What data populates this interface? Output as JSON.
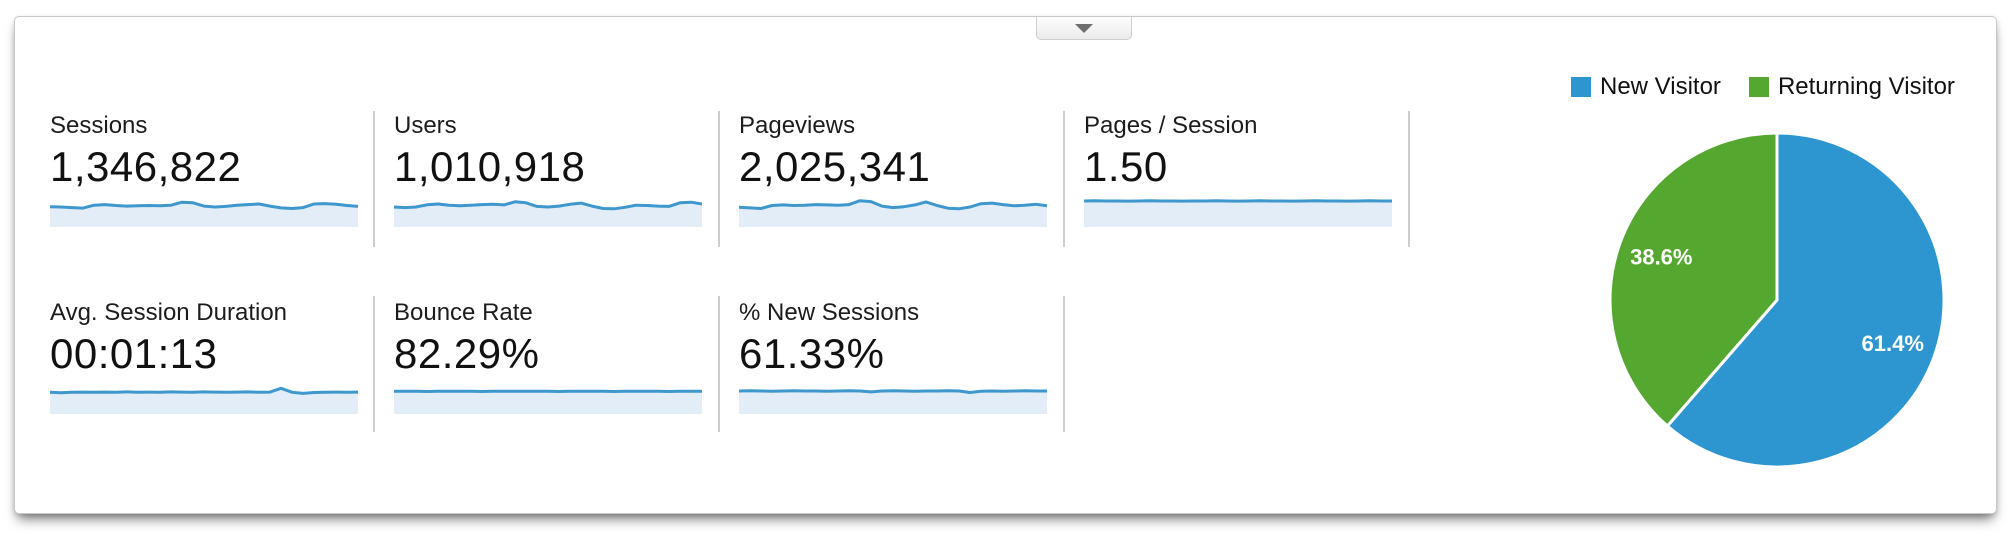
{
  "widget": {
    "collapse_button": {
      "icon": "caret-down"
    }
  },
  "metrics": {
    "items": [
      {
        "label": "Sessions",
        "value": "1,346,822"
      },
      {
        "label": "Users",
        "value": "1,010,918"
      },
      {
        "label": "Pageviews",
        "value": "2,025,341"
      },
      {
        "label": "Pages / Session",
        "value": "1.50"
      },
      {
        "label": "Avg. Session Duration",
        "value": "00:01:13"
      },
      {
        "label": "Bounce Rate",
        "value": "82.29%"
      },
      {
        "label": "% New Sessions",
        "value": "61.33%"
      }
    ]
  },
  "chart_data": [
    {
      "id": "visitor-split-pie",
      "type": "pie",
      "labels": [
        "New Visitor",
        "Returning Visitor"
      ],
      "values": [
        61.4,
        38.6
      ],
      "slice_labels": [
        "61.4%",
        "38.6%"
      ],
      "colors": [
        "#2D96D0",
        "#55A82F"
      ],
      "legend_position": "top",
      "start_angle_deg": 0,
      "direction": "clockwise",
      "slice_gap_color": "#ffffff"
    },
    {
      "id": "metric-sparklines",
      "type": "area",
      "note": "unlabeled sparklines; values are normalized 0-1 trend estimates, one series per metric tile",
      "line_color": "#3E97CD",
      "fill_color": "#E3EDF7",
      "series": [
        {
          "name": "Sessions",
          "values": [
            0.42,
            0.4,
            0.36,
            0.33,
            0.52,
            0.56,
            0.5,
            0.46,
            0.48,
            0.5,
            0.49,
            0.52,
            0.72,
            0.68,
            0.46,
            0.4,
            0.44,
            0.52,
            0.56,
            0.6,
            0.46,
            0.34,
            0.3,
            0.36,
            0.6,
            0.63,
            0.58,
            0.5,
            0.44
          ]
        },
        {
          "name": "Users",
          "values": [
            0.4,
            0.36,
            0.4,
            0.55,
            0.6,
            0.52,
            0.48,
            0.52,
            0.56,
            0.58,
            0.54,
            0.75,
            0.68,
            0.44,
            0.4,
            0.46,
            0.58,
            0.66,
            0.46,
            0.3,
            0.28,
            0.38,
            0.52,
            0.5,
            0.46,
            0.44,
            0.68,
            0.72,
            0.6
          ]
        },
        {
          "name": "Pageviews",
          "values": [
            0.38,
            0.34,
            0.3,
            0.5,
            0.54,
            0.5,
            0.52,
            0.56,
            0.54,
            0.52,
            0.56,
            0.82,
            0.76,
            0.46,
            0.36,
            0.42,
            0.54,
            0.74,
            0.5,
            0.32,
            0.28,
            0.4,
            0.62,
            0.66,
            0.56,
            0.48,
            0.52,
            0.58,
            0.48
          ]
        },
        {
          "name": "Pages / Session",
          "values": [
            0.8,
            0.81,
            0.8,
            0.8,
            0.79,
            0.8,
            0.81,
            0.8,
            0.8,
            0.79,
            0.8,
            0.8,
            0.81,
            0.8,
            0.79,
            0.8,
            0.82,
            0.8,
            0.8,
            0.79,
            0.8,
            0.81,
            0.8,
            0.8,
            0.79,
            0.8,
            0.81,
            0.8,
            0.8
          ]
        },
        {
          "name": "Avg. Session Duration",
          "values": [
            0.52,
            0.48,
            0.52,
            0.53,
            0.51,
            0.53,
            0.52,
            0.54,
            0.52,
            0.53,
            0.52,
            0.54,
            0.53,
            0.52,
            0.54,
            0.53,
            0.52,
            0.53,
            0.54,
            0.52,
            0.53,
            0.78,
            0.52,
            0.44,
            0.5,
            0.52,
            0.53,
            0.52,
            0.53
          ]
        },
        {
          "name": "Bounce Rate",
          "values": [
            0.58,
            0.59,
            0.58,
            0.57,
            0.58,
            0.59,
            0.58,
            0.58,
            0.57,
            0.58,
            0.59,
            0.58,
            0.58,
            0.59,
            0.58,
            0.57,
            0.58,
            0.58,
            0.59,
            0.58,
            0.57,
            0.58,
            0.59,
            0.58,
            0.58,
            0.57,
            0.58,
            0.59,
            0.58
          ]
        },
        {
          "name": "% New Sessions",
          "values": [
            0.6,
            0.61,
            0.6,
            0.59,
            0.6,
            0.61,
            0.6,
            0.6,
            0.59,
            0.6,
            0.61,
            0.6,
            0.54,
            0.6,
            0.61,
            0.6,
            0.59,
            0.6,
            0.6,
            0.61,
            0.6,
            0.5,
            0.58,
            0.6,
            0.59,
            0.6,
            0.61,
            0.6,
            0.6
          ]
        }
      ]
    }
  ]
}
